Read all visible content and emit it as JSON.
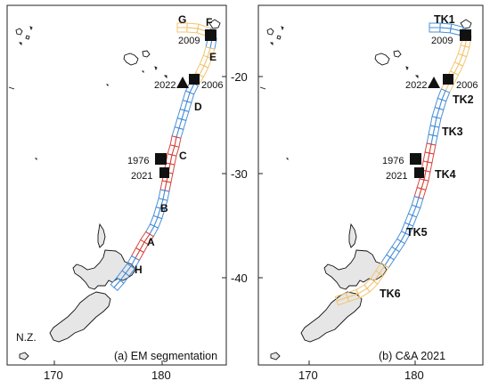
{
  "colors": {
    "blue": "#4a90d9",
    "red": "#d9473f",
    "yellow": "#f2c572",
    "land": "#e6e6e6",
    "coast": "#111111"
  },
  "axes": {
    "x_ticks": [
      "170",
      "180"
    ],
    "y_ticks": [
      "-20",
      "-30",
      "-40"
    ]
  },
  "panel_a": {
    "caption": "(a) EM segmentation",
    "segments": [
      "G",
      "F",
      "E",
      "D",
      "C",
      "B",
      "A",
      "H"
    ],
    "events": [
      {
        "year": "2009",
        "marker": "square"
      },
      {
        "year": "2022",
        "marker": "triangle"
      },
      {
        "year": "2006",
        "marker": "square"
      },
      {
        "year": "1976",
        "marker": "square"
      },
      {
        "year": "2021",
        "marker": "square"
      }
    ],
    "land_label": "N.Z."
  },
  "panel_b": {
    "caption": "(b) C&A 2021",
    "segments": [
      "TK1",
      "TK2",
      "TK3",
      "TK4",
      "TK5",
      "TK6"
    ],
    "events": [
      {
        "year": "2009",
        "marker": "square"
      },
      {
        "year": "2022",
        "marker": "triangle"
      },
      {
        "year": "2006",
        "marker": "square"
      },
      {
        "year": "1976",
        "marker": "square"
      },
      {
        "year": "2021",
        "marker": "square"
      }
    ]
  }
}
